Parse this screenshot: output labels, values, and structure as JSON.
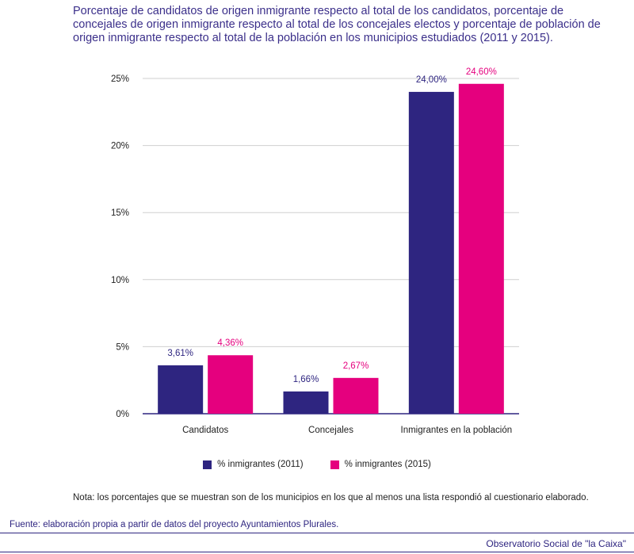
{
  "title": "Porcentaje de candidatos de origen inmigrante respecto al total de los candidatos, porcentaje de concejales de origen inmigrante respecto al total de los concejales electos y porcentaje de población de origen inmigrante respecto al total de la población en los municipios estudiados (2011 y 2015).",
  "chart_data": {
    "type": "bar",
    "categories": [
      "Candidatos",
      "Concejales",
      "Inmigrantes en la población"
    ],
    "series": [
      {
        "name": "% inmigrantes (2011)",
        "values": [
          3.61,
          1.66,
          24.0
        ],
        "labels": [
          "3,61%",
          "1,66%",
          "24,00%"
        ],
        "color": "#2e2580"
      },
      {
        "name": "% inmigrantes (2015)",
        "values": [
          4.36,
          2.67,
          24.6
        ],
        "labels": [
          "4,36%",
          "2,67%",
          "24,60%"
        ],
        "color": "#e5007e"
      }
    ],
    "yticks": [
      0,
      5,
      10,
      15,
      20,
      25
    ],
    "ytick_labels": [
      "0%",
      "5%",
      "10%",
      "15%",
      "20%",
      "25%"
    ],
    "ylim": [
      0,
      25
    ],
    "grid": true,
    "legend_position": "bottom"
  },
  "note": "Nota: los porcentajes que se muestran son de los municipios en los que al menos una lista respondió al cuestionario elaborado.",
  "source": "Fuente: elaboración propia a partir de datos del proyecto Ayuntamientos Plurales.",
  "brand": "Observatorio Social de \"la Caixa\""
}
